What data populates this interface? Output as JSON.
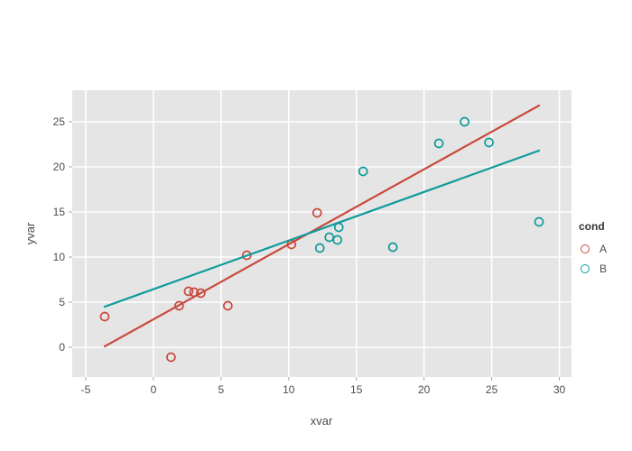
{
  "figure": {
    "background": "#ffffff",
    "plot_background": "#e5e5e5",
    "grid_color": "#ffffff",
    "tick_mark_color": "#a6a6a6",
    "label_color": "#4d4d4d"
  },
  "chart_data": {
    "type": "scatter",
    "title": "",
    "xlabel": "xvar",
    "ylabel": "yvar",
    "xlim": [
      -6.0,
      30.9
    ],
    "ylim": [
      -3.3,
      28.5
    ],
    "x_ticks": [
      -5,
      0,
      5,
      10,
      15,
      20,
      25,
      30
    ],
    "y_ticks": [
      0,
      5,
      10,
      15,
      20,
      25
    ],
    "grid": true,
    "legend": {
      "title": "cond",
      "position": "right"
    },
    "series": [
      {
        "name": "A",
        "color": "#c9493c",
        "marker": "circle-open",
        "points": [
          [
            -3.6,
            3.4
          ],
          [
            1.3,
            -1.1
          ],
          [
            1.9,
            4.6
          ],
          [
            2.6,
            6.2
          ],
          [
            3.0,
            6.1
          ],
          [
            3.5,
            6.0
          ],
          [
            5.5,
            4.6
          ],
          [
            6.9,
            10.2
          ],
          [
            10.2,
            11.4
          ],
          [
            12.1,
            14.9
          ]
        ],
        "trendline": {
          "x1": -3.6,
          "y1": 0.1,
          "x2": 28.5,
          "y2": 26.8
        }
      },
      {
        "name": "B",
        "color": "#0f9b9b",
        "marker": "circle-open",
        "points": [
          [
            12.3,
            11.0
          ],
          [
            13.0,
            12.2
          ],
          [
            13.6,
            11.9
          ],
          [
            13.7,
            13.3
          ],
          [
            15.5,
            19.5
          ],
          [
            17.7,
            11.1
          ],
          [
            21.1,
            22.6
          ],
          [
            23.0,
            25.0
          ],
          [
            24.8,
            22.7
          ],
          [
            28.5,
            13.9
          ]
        ],
        "trendline": {
          "x1": -3.6,
          "y1": 4.5,
          "x2": 28.5,
          "y2": 21.8
        }
      }
    ]
  }
}
